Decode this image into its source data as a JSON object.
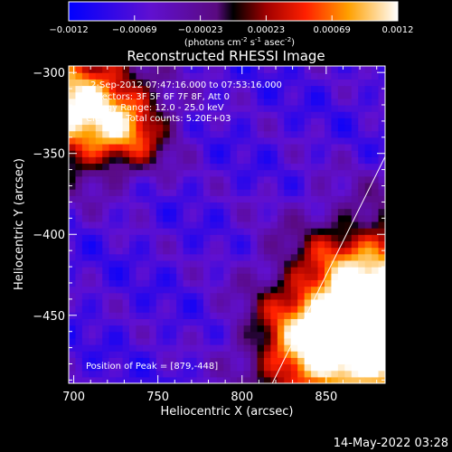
{
  "chart_data": {
    "type": "heatmap",
    "title": "Reconstructed RHESSI Image",
    "xlabel": "Heliocentric X (arcsec)",
    "ylabel": "Heliocentric Y (arcsec)",
    "xlim": [
      697,
      885
    ],
    "ylim": [
      -492,
      -296
    ],
    "xticks": [
      700,
      750,
      800,
      850
    ],
    "yticks": [
      -300,
      -350,
      -400,
      -450
    ],
    "colorbar": {
      "range": [
        -0.0012,
        0.0012
      ],
      "ticks": [
        "-0.0012",
        "-0.00069",
        "-0.00023",
        "0.00023",
        "0.00069",
        "0.0012"
      ],
      "unit_text": "(photons cm",
      "unit_sup1": "-2",
      "unit_mid1": " s",
      "unit_sup2": "-1",
      "unit_mid2": " asec",
      "unit_sup3": "-2",
      "unit_end": ")"
    },
    "annotations": [
      "2-Sep-2012 07:47:16.000 to 07:53:16.000",
      "Detectors: 3F 5F 6F 7F 8F, Att 0",
      "Energy Range: 12.0 - 25.0 keV",
      "Clean     Total counts: 5.20E+03"
    ],
    "peak_label": "Position of Peak = [879,-448]",
    "peak": [
      879,
      -448
    ],
    "limb": {
      "x": [
        818,
        885
      ],
      "y": [
        -492,
        -352
      ]
    },
    "sources": [
      {
        "x": 700,
        "y": -320,
        "sigma": 28,
        "amp": 0.0019
      },
      {
        "x": 735,
        "y": -335,
        "sigma": 18,
        "amp": 0.0008
      },
      {
        "x": 880,
        "y": -450,
        "sigma": 38,
        "amp": 0.0026
      },
      {
        "x": 835,
        "y": -475,
        "sigma": 22,
        "amp": 0.0009
      }
    ],
    "background": -0.00075
  },
  "footer": {
    "timestamp": "14-May-2022 03:28"
  }
}
